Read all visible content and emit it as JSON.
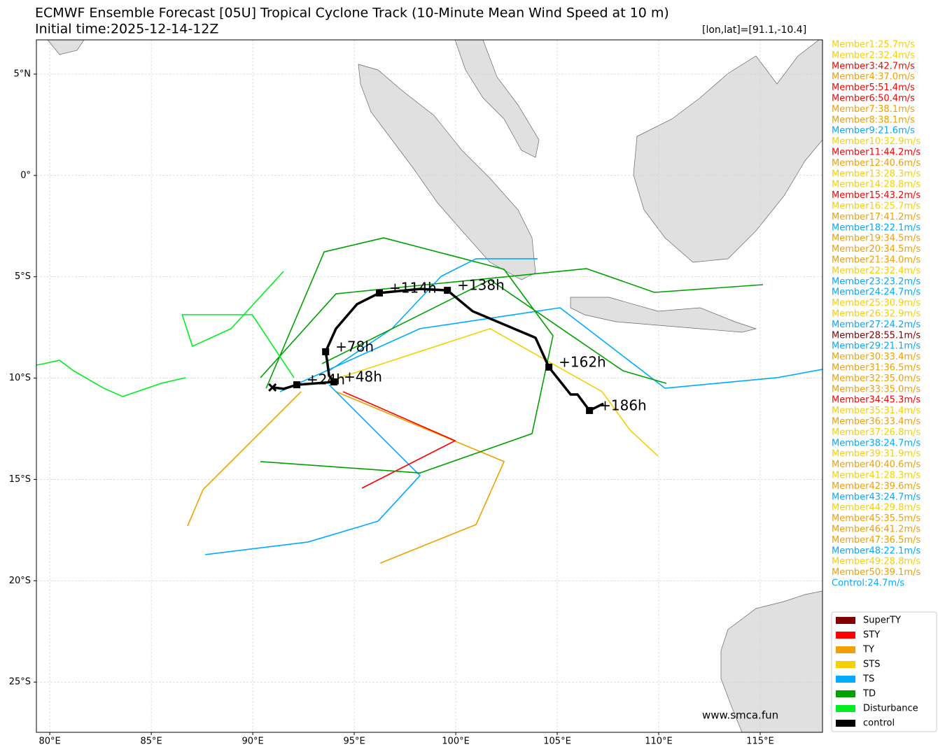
{
  "chart_data": {
    "type": "map",
    "title": "ECMWF Ensemble Forecast [05U] Tropical Cyclone Track (10-Minute Mean Wind Speed at 10 m)",
    "subtitle": "Initial time:2025-12-14-12Z",
    "position_note": "[lon,lat]=[91.1,-10.4]",
    "watermark": "www.smca.fun",
    "xlim": [
      79.34,
      118.07
    ],
    "ylim": [
      -27.48,
      6.69
    ],
    "grid": true,
    "xticks": [
      {
        "value": 80,
        "label": "80°E"
      },
      {
        "value": 85,
        "label": "85°E"
      },
      {
        "value": 90,
        "label": "90°E"
      },
      {
        "value": 95,
        "label": "95°E"
      },
      {
        "value": 100,
        "label": "100°E"
      },
      {
        "value": 105,
        "label": "105°E"
      },
      {
        "value": 110,
        "label": "110°E"
      },
      {
        "value": 115,
        "label": "115°E"
      }
    ],
    "yticks": [
      {
        "value": 5,
        "label": "5°N"
      },
      {
        "value": 0,
        "label": "0°"
      },
      {
        "value": -5,
        "label": "5°S"
      },
      {
        "value": -10,
        "label": "10°S"
      },
      {
        "value": -15,
        "label": "15°S"
      },
      {
        "value": -20,
        "label": "20°S"
      },
      {
        "value": -25,
        "label": "25°S"
      }
    ],
    "tracks": [
      {
        "color": "#00ee22",
        "x": [
          79.34,
          79.69,
          80.48,
          81.17,
          82.66,
          83.59,
          85.48,
          86.69
        ],
        "y": [
          -9.36,
          -9.29,
          -9.12,
          -9.64,
          -10.5,
          -10.91,
          -10.26,
          -9.98
        ]
      },
      {
        "color": "#00a000",
        "x": [
          90.38,
          94.1,
          106.45,
          109.79,
          115.14
        ],
        "y": [
          -9.98,
          -5.84,
          -4.6,
          -5.77,
          -5.39
        ]
      },
      {
        "color": "#00aaff",
        "x": [
          91.34,
          98.24,
          105.14,
          110.31,
          115.83,
          118.07
        ],
        "y": [
          -10.67,
          -7.56,
          -6.53,
          -10.5,
          -9.98,
          -9.57
        ]
      },
      {
        "color": "#f0a000",
        "x": [
          92.38,
          89.62,
          87.55,
          86.79
        ],
        "y": [
          -10.67,
          -13.43,
          -15.5,
          -17.3
        ]
      },
      {
        "color": "#f0a000",
        "x": [
          94.1,
          102.38,
          101.0,
          96.28
        ],
        "y": [
          -10.67,
          -14.12,
          -17.23,
          -19.13
        ]
      },
      {
        "color": "#00aaff",
        "x": [
          93.76,
          98.24,
          96.17,
          92.72,
          87.66
        ],
        "y": [
          -10.33,
          -14.81,
          -17.06,
          -18.09,
          -18.71
        ]
      },
      {
        "color": "#ff0000",
        "x": [
          94.45,
          99.97,
          95.38
        ],
        "y": [
          -10.67,
          -13.09,
          -15.43
        ]
      },
      {
        "color": "#f5d000",
        "x": [
          93.76,
          101.69,
          107.21,
          108.59,
          109.97
        ],
        "y": [
          -10.15,
          -7.56,
          -10.67,
          -12.57,
          -13.85
        ]
      },
      {
        "color": "#00a000",
        "x": [
          90.66,
          93.52,
          96.45,
          102.38,
          104.79,
          103.76,
          98.24,
          90.38
        ],
        "y": [
          -10.5,
          -3.77,
          -3.08,
          -4.63,
          -7.91,
          -12.74,
          -14.68,
          -14.12
        ]
      },
      {
        "color": "#00ee22",
        "x": [
          92.03,
          89.97,
          86.52,
          87.03,
          88.93,
          91.52
        ],
        "y": [
          -9.98,
          -6.87,
          -6.87,
          -8.43,
          -7.56,
          -4.73
        ]
      },
      {
        "color": "#00aaff",
        "x": [
          93.76,
          96.86,
          99.28,
          101.0,
          104.03
        ],
        "y": [
          -9.64,
          -7.56,
          -4.98,
          -4.11,
          -4.11
        ]
      },
      {
        "color": "#00a000",
        "x": [
          93.41,
          101.69,
          108.24,
          110.38
        ],
        "y": [
          -9.29,
          -5.15,
          -9.64,
          -10.26
        ]
      }
    ],
    "control": {
      "color": "#000000",
      "x": [
        90.97,
        91.52,
        92.17,
        94.0,
        93.76,
        93.66,
        93.59,
        94.1,
        95.14,
        96.24,
        98.24,
        99.59,
        100.83,
        103.93,
        104.59,
        105.66,
        106.0,
        106.59,
        107.28
      ],
      "y": [
        -10.46,
        -10.53,
        -10.33,
        -10.19,
        -9.88,
        -9.12,
        -8.7,
        -7.56,
        -6.35,
        -5.8,
        -5.6,
        -5.67,
        -6.7,
        -8.01,
        -9.46,
        -10.81,
        -10.81,
        -11.6,
        -11.26
      ],
      "labels": [
        null,
        null,
        "+24h",
        "+48h",
        null,
        null,
        "+78h",
        null,
        null,
        "+114h",
        null,
        "+138h",
        null,
        null,
        "+162h",
        null,
        null,
        "+186h",
        null
      ]
    },
    "members": [
      {
        "label": "Member1:25.7m/s",
        "color": "#f5d000"
      },
      {
        "label": "Member2:32.4m/s",
        "color": "#f5d000"
      },
      {
        "label": "Member3:42.7m/s",
        "color": "#ff0000"
      },
      {
        "label": "Member4:37.0m/s",
        "color": "#f0a000"
      },
      {
        "label": "Member5:51.4m/s",
        "color": "#ff0000"
      },
      {
        "label": "Member6:50.4m/s",
        "color": "#ff0000"
      },
      {
        "label": "Member7:38.1m/s",
        "color": "#f0a000"
      },
      {
        "label": "Member8:38.1m/s",
        "color": "#f0a000"
      },
      {
        "label": "Member9:21.6m/s",
        "color": "#00aaff"
      },
      {
        "label": "Member10:32.9m/s",
        "color": "#f5d000"
      },
      {
        "label": "Member11:44.2m/s",
        "color": "#ff0000"
      },
      {
        "label": "Member12:40.6m/s",
        "color": "#f0a000"
      },
      {
        "label": "Member13:28.3m/s",
        "color": "#f5d000"
      },
      {
        "label": "Member14:28.8m/s",
        "color": "#f5d000"
      },
      {
        "label": "Member15:43.2m/s",
        "color": "#ff0000"
      },
      {
        "label": "Member16:25.7m/s",
        "color": "#f5d000"
      },
      {
        "label": "Member17:41.2m/s",
        "color": "#f0a000"
      },
      {
        "label": "Member18:22.1m/s",
        "color": "#00aaff"
      },
      {
        "label": "Member19:34.5m/s",
        "color": "#f0a000"
      },
      {
        "label": "Member20:34.5m/s",
        "color": "#f0a000"
      },
      {
        "label": "Member21:34.0m/s",
        "color": "#f0a000"
      },
      {
        "label": "Member22:32.4m/s",
        "color": "#f5d000"
      },
      {
        "label": "Member23:23.2m/s",
        "color": "#00aaff"
      },
      {
        "label": "Member24:24.7m/s",
        "color": "#00aaff"
      },
      {
        "label": "Member25:30.9m/s",
        "color": "#f5d000"
      },
      {
        "label": "Member26:32.9m/s",
        "color": "#f5d000"
      },
      {
        "label": "Member27:24.2m/s",
        "color": "#00aaff"
      },
      {
        "label": "Member28:55.1m/s",
        "color": "#800000"
      },
      {
        "label": "Member29:21.1m/s",
        "color": "#00aaff"
      },
      {
        "label": "Member30:33.4m/s",
        "color": "#f0a000"
      },
      {
        "label": "Member31:36.5m/s",
        "color": "#f0a000"
      },
      {
        "label": "Member32:35.0m/s",
        "color": "#f0a000"
      },
      {
        "label": "Member33:35.0m/s",
        "color": "#f0a000"
      },
      {
        "label": "Member34:45.3m/s",
        "color": "#ff0000"
      },
      {
        "label": "Member35:31.4m/s",
        "color": "#f5d000"
      },
      {
        "label": "Member36:33.4m/s",
        "color": "#f0a000"
      },
      {
        "label": "Member37:26.8m/s",
        "color": "#f5d000"
      },
      {
        "label": "Member38:24.7m/s",
        "color": "#00aaff"
      },
      {
        "label": "Member39:31.9m/s",
        "color": "#f5d000"
      },
      {
        "label": "Member40:40.6m/s",
        "color": "#f0a000"
      },
      {
        "label": "Member41:28.3m/s",
        "color": "#f5d000"
      },
      {
        "label": "Member42:39.6m/s",
        "color": "#f0a000"
      },
      {
        "label": "Member43:24.7m/s",
        "color": "#00aaff"
      },
      {
        "label": "Member44:29.8m/s",
        "color": "#f5d000"
      },
      {
        "label": "Member45:35.5m/s",
        "color": "#f0a000"
      },
      {
        "label": "Member46:41.2m/s",
        "color": "#f0a000"
      },
      {
        "label": "Member47:36.5m/s",
        "color": "#f0a000"
      },
      {
        "label": "Member48:22.1m/s",
        "color": "#00aaff"
      },
      {
        "label": "Member49:28.8m/s",
        "color": "#f5d000"
      },
      {
        "label": "Member50:39.1m/s",
        "color": "#f0a000"
      },
      {
        "label": "Control:24.7m/s",
        "color": "#00aaff"
      }
    ],
    "legend": [
      {
        "label": "SuperTY",
        "color": "#800000"
      },
      {
        "label": "STY",
        "color": "#ff0000"
      },
      {
        "label": "TY",
        "color": "#f0a000"
      },
      {
        "label": "STS",
        "color": "#f5d000"
      },
      {
        "label": "TS",
        "color": "#00aaff"
      },
      {
        "label": "TD",
        "color": "#00a000"
      },
      {
        "label": "Disturbance",
        "color": "#00ee22"
      },
      {
        "label": "control",
        "color": "#000000"
      }
    ]
  }
}
